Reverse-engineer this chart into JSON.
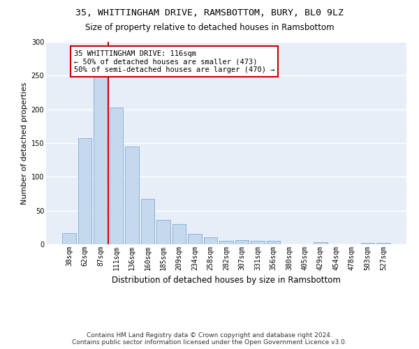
{
  "title": "35, WHITTINGHAM DRIVE, RAMSBOTTOM, BURY, BL0 9LZ",
  "subtitle": "Size of property relative to detached houses in Ramsbottom",
  "xlabel": "Distribution of detached houses by size in Ramsbottom",
  "ylabel": "Number of detached properties",
  "bar_color": "#c5d8ee",
  "bar_edge_color": "#7aaed4",
  "bg_color": "#e8eef8",
  "grid_color": "#ffffff",
  "categories": [
    "38sqm",
    "62sqm",
    "87sqm",
    "111sqm",
    "136sqm",
    "160sqm",
    "185sqm",
    "209sqm",
    "234sqm",
    "258sqm",
    "282sqm",
    "307sqm",
    "331sqm",
    "356sqm",
    "380sqm",
    "405sqm",
    "429sqm",
    "454sqm",
    "478sqm",
    "503sqm",
    "527sqm"
  ],
  "values": [
    17,
    157,
    250,
    203,
    145,
    67,
    36,
    30,
    16,
    10,
    5,
    6,
    5,
    5,
    0,
    0,
    3,
    0,
    0,
    2,
    2
  ],
  "ylim": [
    0,
    300
  ],
  "yticks": [
    0,
    50,
    100,
    150,
    200,
    250,
    300
  ],
  "red_line_after_bar": 2,
  "annotation_text": "35 WHITTINGHAM DRIVE: 116sqm\n← 50% of detached houses are smaller (473)\n50% of semi-detached houses are larger (470) →",
  "annotation_box_color": "#ffffff",
  "annotation_box_edge": "#cc0000",
  "red_line_color": "#cc0000",
  "footer_text": "Contains HM Land Registry data © Crown copyright and database right 2024.\nContains public sector information licensed under the Open Government Licence v3.0.",
  "title_fontsize": 9.5,
  "subtitle_fontsize": 8.5,
  "xlabel_fontsize": 8.5,
  "ylabel_fontsize": 8,
  "tick_fontsize": 7,
  "annotation_fontsize": 7.5,
  "footer_fontsize": 6.5
}
